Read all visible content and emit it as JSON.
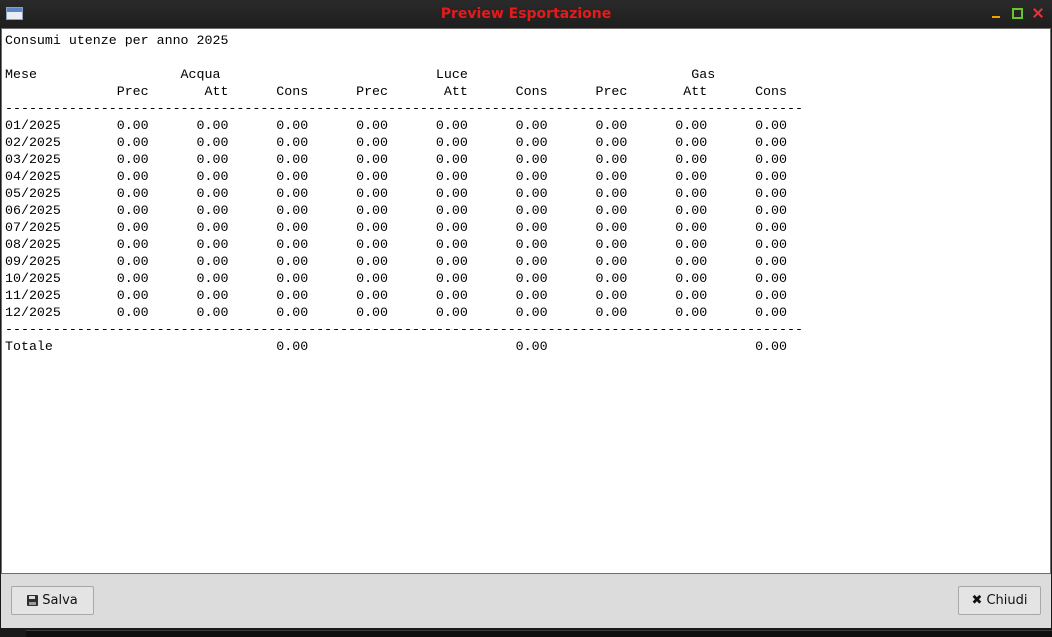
{
  "window": {
    "title": "Preview Esportazione"
  },
  "report": {
    "lines": [
      "Consumi utenze per anno 2025",
      "",
      "Mese                  Acqua                           Luce                            Gas",
      "              Prec       Att      Cons      Prec       Att      Cons      Prec       Att      Cons",
      "----------------------------------------------------------------------------------------------------",
      "01/2025       0.00      0.00      0.00      0.00      0.00      0.00      0.00      0.00      0.00",
      "02/2025       0.00      0.00      0.00      0.00      0.00      0.00      0.00      0.00      0.00",
      "03/2025       0.00      0.00      0.00      0.00      0.00      0.00      0.00      0.00      0.00",
      "04/2025       0.00      0.00      0.00      0.00      0.00      0.00      0.00      0.00      0.00",
      "05/2025       0.00      0.00      0.00      0.00      0.00      0.00      0.00      0.00      0.00",
      "06/2025       0.00      0.00      0.00      0.00      0.00      0.00      0.00      0.00      0.00",
      "07/2025       0.00      0.00      0.00      0.00      0.00      0.00      0.00      0.00      0.00",
      "08/2025       0.00      0.00      0.00      0.00      0.00      0.00      0.00      0.00      0.00",
      "09/2025       0.00      0.00      0.00      0.00      0.00      0.00      0.00      0.00      0.00",
      "10/2025       0.00      0.00      0.00      0.00      0.00      0.00      0.00      0.00      0.00",
      "11/2025       0.00      0.00      0.00      0.00      0.00      0.00      0.00      0.00      0.00",
      "12/2025       0.00      0.00      0.00      0.00      0.00      0.00      0.00      0.00      0.00",
      "----------------------------------------------------------------------------------------------------",
      "Totale                            0.00                          0.00                          0.00"
    ]
  },
  "footer": {
    "save_label": "Salva",
    "close_label": "Chiudi"
  },
  "colors": {
    "title": "#e51b1b",
    "titlebar": "#1e1e1e",
    "footer": "#dcdcdc"
  },
  "icons": {
    "app": "window-app-icon",
    "save": "floppy-disk-icon",
    "close": "x-icon"
  }
}
